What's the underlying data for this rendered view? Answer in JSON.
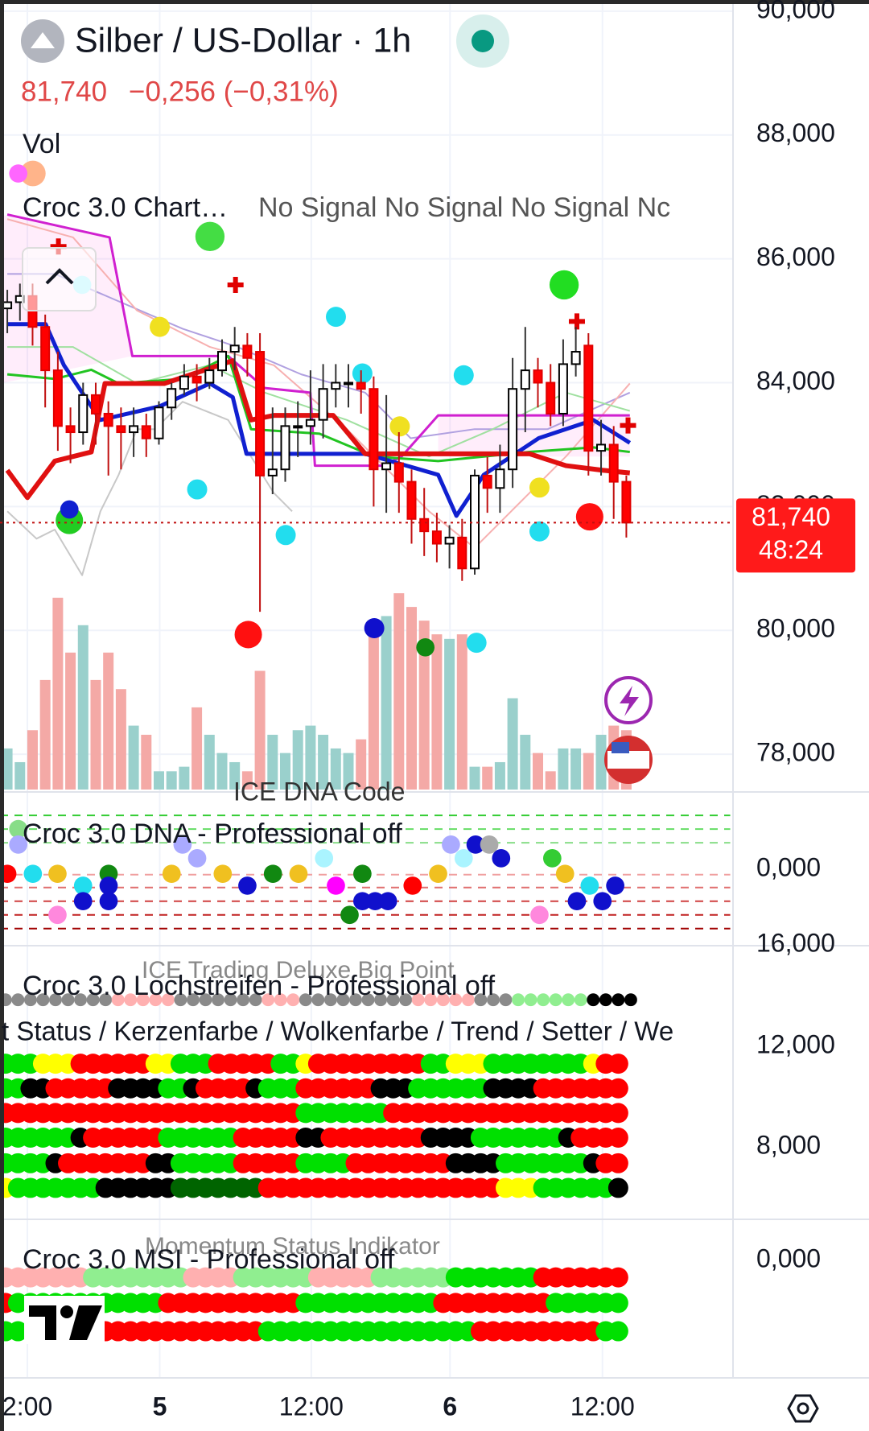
{
  "header": {
    "title": "Silber / US-Dollar · 1h",
    "price": "81,740",
    "change": "−0,256 (−0,31%)"
  },
  "chart_data": {
    "type": "candlestick",
    "open": [
      85.2,
      85.3,
      85.4,
      84.9,
      84.2,
      83.3,
      83.2,
      83.8,
      83.5,
      83.3,
      83.2,
      83.3,
      83.1,
      83.6,
      83.9,
      84.1,
      84.0,
      84.2,
      84.5,
      84.6,
      84.5,
      82.5,
      82.6,
      83.3,
      83.3,
      83.4,
      83.9,
      84.0,
      84.0,
      83.9,
      82.6,
      82.7,
      82.4,
      81.8,
      81.6,
      81.4,
      81.5,
      81.0,
      82.5,
      82.3,
      82.6,
      83.9,
      84.2,
      84.0,
      83.5,
      84.3,
      84.6,
      82.9,
      83.0,
      82.4
    ],
    "high": [
      85.5,
      85.6,
      85.6,
      85.1,
      84.5,
      83.6,
      84.0,
      84.0,
      83.7,
      83.6,
      83.6,
      83.5,
      83.7,
      84.0,
      84.3,
      84.3,
      84.4,
      84.7,
      84.9,
      84.8,
      84.8,
      83.6,
      83.6,
      83.7,
      84.2,
      84.3,
      84.3,
      84.3,
      84.2,
      84.1,
      83.8,
      83.2,
      82.6,
      82.3,
      81.9,
      81.7,
      81.8,
      82.6,
      82.8,
      83.0,
      84.4,
      84.9,
      84.4,
      84.3,
      84.7,
      84.9,
      84.8,
      83.4,
      83.3,
      82.5
    ],
    "low": [
      84.8,
      85.0,
      84.6,
      83.6,
      82.9,
      82.7,
      83.0,
      83.0,
      82.5,
      82.6,
      82.8,
      82.8,
      83.0,
      83.4,
      83.8,
      83.7,
      83.9,
      84.1,
      84.2,
      84.1,
      80.3,
      82.2,
      82.4,
      82.8,
      83.0,
      83.1,
      83.6,
      83.6,
      83.5,
      82.0,
      81.9,
      81.9,
      81.4,
      81.2,
      81.1,
      81.0,
      80.8,
      80.9,
      81.9,
      81.9,
      82.3,
      83.2,
      83.6,
      83.3,
      83.3,
      84.1,
      82.5,
      82.5,
      81.8,
      81.5
    ],
    "close": [
      85.3,
      85.4,
      84.9,
      84.2,
      83.3,
      83.2,
      83.8,
      83.5,
      83.3,
      83.2,
      83.3,
      83.1,
      83.6,
      83.9,
      84.1,
      84.0,
      84.2,
      84.5,
      84.6,
      84.4,
      82.5,
      82.6,
      83.3,
      83.3,
      83.4,
      83.9,
      84.0,
      84.0,
      83.9,
      82.6,
      82.7,
      82.4,
      81.8,
      81.6,
      81.4,
      81.5,
      81.0,
      82.5,
      82.3,
      82.6,
      83.9,
      84.2,
      84.0,
      83.5,
      84.3,
      84.5,
      82.9,
      83.0,
      82.4,
      81.74
    ],
    "volume": [
      45,
      30,
      65,
      120,
      210,
      150,
      180,
      120,
      150,
      110,
      70,
      60,
      20,
      20,
      25,
      90,
      60,
      40,
      30,
      20,
      130,
      60,
      40,
      65,
      70,
      60,
      45,
      40,
      55,
      185,
      190,
      215,
      200,
      185,
      170,
      165,
      170,
      25,
      25,
      30,
      100,
      60,
      40,
      20,
      45,
      45,
      40,
      60,
      70,
      65
    ],
    "up_color": "#ffffff",
    "down_color": "#ff0000",
    "ylim": [
      77.43,
      90.18
    ],
    "yticks": [
      {
        "value": 78,
        "label": "78,000"
      },
      {
        "value": 80,
        "label": "80,000"
      },
      {
        "value": 82,
        "label": "82,000"
      },
      {
        "value": 84,
        "label": "84,000"
      },
      {
        "value": 86,
        "label": "86,000"
      },
      {
        "value": 88,
        "label": "88,000"
      },
      {
        "value": 90,
        "label": "90,000"
      }
    ],
    "grid": true,
    "last_price": {
      "value": 81.74,
      "label": "81,740"
    },
    "countdown": "48:24",
    "x_labels": [
      "2:00",
      "5",
      "12:00",
      "6",
      "12:00"
    ]
  },
  "panes": {
    "volume": {
      "label": "Vol"
    },
    "main": {
      "label": "Croc 3.0 Chart…",
      "signals": "No Signal No Signal No Signal Nc"
    },
    "dna": {
      "overlay": "ICE DNA Code",
      "label": "Croc 3.0 DNA - Professional off",
      "ticks": [
        "0,000",
        "16,000"
      ]
    },
    "lochstreifen": {
      "overlay": "ICE Trading Deluxe Big Point",
      "label": "Croc 3.0 Lochstreifen - Professional off",
      "legend": "t Status / Kerzenfarbe / Wolkenfarbe / Trend / Setter / We",
      "ticks": [
        "12,000",
        "8,000"
      ]
    },
    "msi": {
      "overlay": "Momentum Status Indikator",
      "label": "Croc 3.0 MSI - Professional off",
      "ticks": [
        "0,000"
      ]
    }
  }
}
